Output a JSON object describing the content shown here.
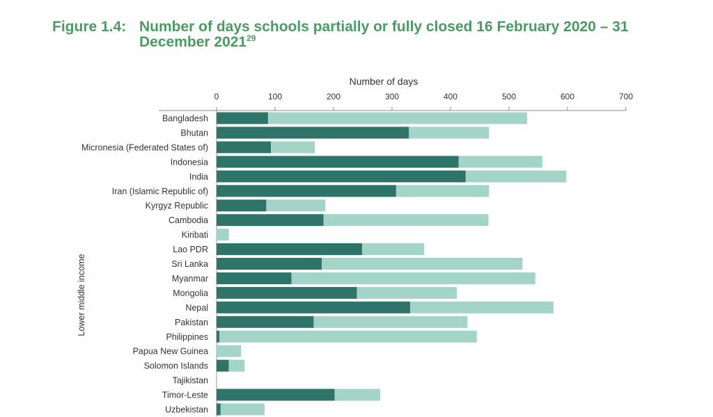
{
  "figure": {
    "label": "Figure 1.4:",
    "title": "Number of days schools partially or fully closed 16 February 2020 – 31 December 2021",
    "footnote": "29"
  },
  "colors": {
    "title": "#4a9a62",
    "fully_closed": "#2f7468",
    "partially_closed": "#a3d4c7"
  },
  "chart_data": {
    "type": "bar",
    "orientation": "horizontal",
    "stacked": true,
    "title": "",
    "xlabel": "Number of days",
    "ylabel": "",
    "xlim": [
      0,
      700
    ],
    "xticks": [
      0,
      100,
      200,
      300,
      400,
      500,
      600,
      700
    ],
    "x_axis_position": "top",
    "grid": false,
    "legend": "none",
    "group_label": "Lower middle income",
    "categories": [
      "Bangladesh",
      "Bhutan",
      "Micronesia (Federated States of)",
      "Indonesia",
      "India",
      "Iran (Islamic Republic of)",
      "Kyrgyz Republic",
      "Cambodia",
      "Kiribati",
      "Lao PDR",
      "Sri Lanka",
      "Myanmar",
      "Mongolia",
      "Nepal",
      "Pakistan",
      "Philippines",
      "Papua New Guinea",
      "Solomon Islands",
      "Tajikistan",
      "Timor-Leste",
      "Uzbekistan"
    ],
    "series": [
      {
        "values": [
          88,
          329,
          93,
          414,
          426,
          307,
          85,
          183,
          0,
          249,
          180,
          128,
          240,
          331,
          166,
          5,
          0,
          21,
          0,
          202,
          7
        ]
      },
      {
        "values": [
          443,
          137,
          75,
          143,
          172,
          159,
          101,
          282,
          21,
          106,
          343,
          417,
          171,
          245,
          263,
          440,
          42,
          27,
          0,
          78,
          75
        ]
      }
    ]
  }
}
